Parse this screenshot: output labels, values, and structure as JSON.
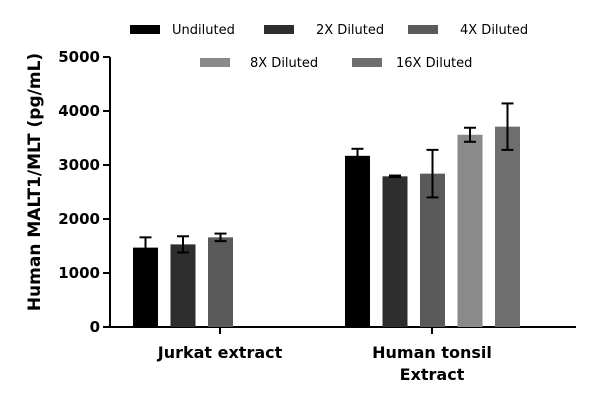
{
  "chart_data": {
    "type": "bar",
    "ylabel": "Human MALT1/MLT (pg/mL)",
    "ylim": [
      0,
      5000
    ],
    "yticks": [
      "0",
      "1000",
      "2000",
      "3000",
      "4000",
      "5000"
    ],
    "categories": [
      "Jurkat extract",
      "Human tonsil Extract"
    ],
    "category_lines": [
      [
        "Jurkat extract"
      ],
      [
        "Human tonsil",
        "Extract"
      ]
    ],
    "legend_position": "top",
    "series": [
      {
        "name": "Undiluted",
        "color": "#000000",
        "values": [
          1470,
          3170
        ],
        "errors": [
          190,
          130
        ]
      },
      {
        "name": "2X Diluted",
        "color": "#2e2e2e",
        "values": [
          1530,
          2790
        ],
        "errors": [
          150,
          15
        ]
      },
      {
        "name": "4X Diluted",
        "color": "#5a5a5a",
        "values": [
          1660,
          2840
        ],
        "errors": [
          70,
          440
        ]
      },
      {
        "name": "8X Diluted",
        "color": "#8a8a8a",
        "values": [
          null,
          3560
        ],
        "errors": [
          null,
          130
        ]
      },
      {
        "name": "16X Diluted",
        "color": "#6e6e6e",
        "values": [
          null,
          3710
        ],
        "errors": [
          null,
          430
        ]
      }
    ]
  }
}
